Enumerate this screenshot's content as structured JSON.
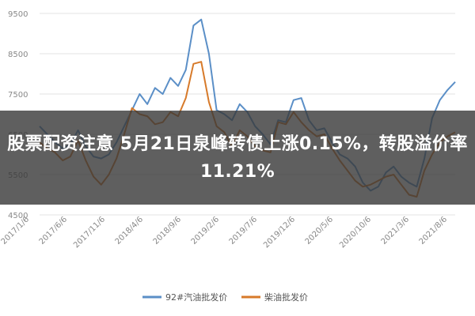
{
  "headline": "股票配资注意 5月21日泉峰转债上涨0.15%，转股溢价率11.21%",
  "colors": {
    "series1": "#5b8fc7",
    "series2": "#d77a2a",
    "grid": "#e3e3e3",
    "axis_text": "#888888",
    "overlay": "#3a3a3a"
  },
  "chart_data": {
    "type": "line",
    "title": "",
    "xlabel": "",
    "ylabel": "",
    "ylim": [
      4500,
      9500
    ],
    "yticks": [
      4500,
      5500,
      6500,
      7500,
      8500,
      9500
    ],
    "xtick_labels": [
      "2017/1/6",
      "2017/6/6",
      "2017/11/6",
      "2018/4/6",
      "2018/9/6",
      "2019/2/6",
      "2019/7/6",
      "2019/12/6",
      "2020/5/6",
      "2020/10/6",
      "2021/3/6",
      "2021/8/6"
    ],
    "legend_position": "bottom",
    "grid": true,
    "series": [
      {
        "name": "92#汽油批发价",
        "color": "#5b8fc7",
        "x": [
          0,
          1,
          2,
          3,
          4,
          5,
          6,
          7,
          8,
          9,
          10,
          11,
          12,
          13,
          14,
          15,
          16,
          17,
          18,
          19,
          20,
          21,
          22,
          23,
          24,
          25,
          26,
          27,
          28,
          29,
          30,
          31,
          32,
          33,
          34,
          35,
          36,
          37,
          38,
          39,
          40,
          41,
          42,
          43,
          44,
          45,
          46,
          47,
          48,
          49,
          50,
          51,
          52,
          53,
          54
        ],
        "values": [
          6700,
          6500,
          6300,
          6150,
          6250,
          6600,
          6200,
          5950,
          5900,
          6000,
          6300,
          6700,
          7100,
          7500,
          7250,
          7650,
          7500,
          7900,
          7700,
          8100,
          9200,
          9350,
          8500,
          7100,
          7000,
          6850,
          7250,
          7050,
          6700,
          6500,
          6250,
          6850,
          6800,
          7350,
          7400,
          6850,
          6600,
          6650,
          6300,
          6000,
          5900,
          5700,
          5300,
          5100,
          5200,
          5550,
          5700,
          5450,
          5300,
          5200,
          5900,
          6900,
          7350,
          7600,
          7800
        ]
      },
      {
        "name": "柴油批发价",
        "color": "#d77a2a",
        "x": [
          0,
          1,
          2,
          3,
          4,
          5,
          6,
          7,
          8,
          9,
          10,
          11,
          12,
          13,
          14,
          15,
          16,
          17,
          18,
          19,
          20,
          21,
          22,
          23,
          24,
          25,
          26,
          27,
          28,
          29,
          30,
          31,
          32,
          33,
          34,
          35,
          36,
          37,
          38,
          39,
          40,
          41,
          42,
          43,
          44,
          45,
          46,
          47,
          48,
          49,
          50,
          51,
          52,
          53,
          54
        ],
        "values": [
          6300,
          6150,
          6050,
          5850,
          5950,
          6350,
          5850,
          5450,
          5250,
          5500,
          5900,
          6500,
          7150,
          7000,
          6950,
          6750,
          6800,
          7050,
          6950,
          7400,
          8250,
          8300,
          7300,
          6700,
          6550,
          6200,
          6600,
          6450,
          6200,
          6100,
          6050,
          6800,
          6750,
          7050,
          6800,
          6600,
          6450,
          6500,
          6150,
          5850,
          5600,
          5350,
          5200,
          5250,
          5350,
          5450,
          5500,
          5250,
          5000,
          4950,
          5600,
          6000,
          6300,
          6450,
          6550
        ]
      }
    ]
  }
}
